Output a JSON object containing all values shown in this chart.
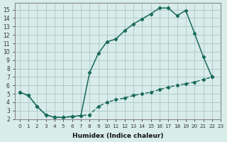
{
  "xlabel": "Humidex (Indice chaleur)",
  "xlim": [
    -0.5,
    23
  ],
  "ylim": [
    2,
    15.8
  ],
  "yticks": [
    2,
    3,
    4,
    5,
    6,
    7,
    8,
    9,
    10,
    11,
    12,
    13,
    14,
    15
  ],
  "xticks": [
    0,
    1,
    2,
    3,
    4,
    5,
    6,
    7,
    8,
    9,
    10,
    11,
    12,
    13,
    14,
    15,
    16,
    17,
    18,
    19,
    20,
    21,
    22,
    23
  ],
  "bg_color": "#d8ecea",
  "grid_color": "#b0ccc8",
  "line_color": "#1a6b5a",
  "upper_line_x": [
    0,
    1,
    2,
    3,
    4,
    5,
    6,
    7,
    8,
    9,
    10,
    11,
    12,
    13,
    14,
    15,
    16,
    17,
    18,
    19,
    20,
    21,
    22
  ],
  "upper_line_y": [
    5.2,
    4.8,
    3.5,
    2.5,
    2.2,
    2.2,
    2.3,
    2.4,
    7.5,
    9.8,
    11.2,
    11.5,
    12.5,
    13.3,
    13.9,
    14.5,
    15.2,
    15.2,
    14.3,
    14.9,
    12.2,
    9.4,
    7.0
  ],
  "lower_dashed_x": [
    0,
    1,
    2,
    3,
    4,
    5,
    6,
    7,
    8,
    9,
    10,
    11,
    12,
    13,
    14,
    15,
    16,
    17,
    18,
    19,
    20,
    21,
    22
  ],
  "lower_dashed_y": [
    5.2,
    4.8,
    3.5,
    2.5,
    2.2,
    2.2,
    2.3,
    2.4,
    2.5,
    3.5,
    4.0,
    4.3,
    4.5,
    4.8,
    5.0,
    5.2,
    5.5,
    5.8,
    6.0,
    6.2,
    6.4,
    6.7,
    7.0
  ]
}
